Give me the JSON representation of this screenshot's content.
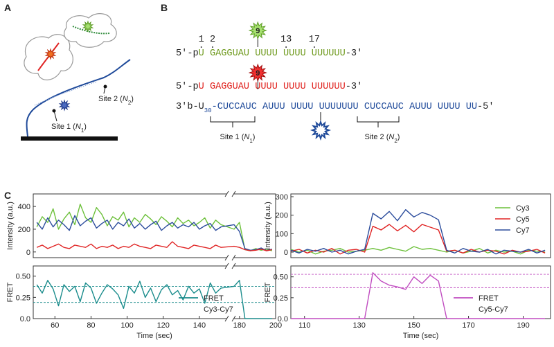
{
  "panel_labels": [
    "A",
    "B",
    "C"
  ],
  "panel_a": {
    "site2": {
      "text": "Site 2 (",
      "var": "N",
      "sub": "2",
      "close": ")"
    },
    "site1": {
      "text": "Site 1 (",
      "var": "N",
      "sub": "1",
      "close": ")"
    }
  },
  "panel_b": {
    "numbers": [
      "1",
      "2",
      "13",
      "17"
    ],
    "star_labels": [
      "9",
      "9"
    ],
    "sequences": [
      {
        "prefix": "5′-p",
        "body": "U GAGGUAU UUUU UUUU UUUUUU",
        "suffix": "-3′",
        "color": "#6f9a1e"
      },
      {
        "prefix": "5′-p",
        "body": "U GAGGUAU UUUU UUUU UUUUUU",
        "suffix": "-3′",
        "color": "#e0201c"
      },
      {
        "prefix": "3′b-U",
        "sub": "30",
        "body": "-CUCCAUC AUUU UUUU UUUUUUU CUCCAUC AUUU UUUU UU",
        "suffix": "-5′",
        "color": "#1f4a9a"
      }
    ],
    "sites": [
      {
        "text": "Site 1 (",
        "var": "N",
        "sub": "1",
        "close": ")"
      },
      {
        "text": "Site 2 (",
        "var": "N",
        "sub": "2",
        "close": ")"
      }
    ]
  },
  "chart_data": [
    {
      "type": "line",
      "y_label": "Intensity (a.u.)",
      "x": [
        50,
        53,
        56,
        59,
        62,
        65,
        68,
        71,
        74,
        77,
        80,
        83,
        86,
        89,
        92,
        95,
        98,
        101,
        104,
        107,
        110,
        113,
        116,
        119,
        122,
        125,
        128,
        131,
        134,
        137,
        140,
        143,
        146,
        149,
        152,
        177,
        180,
        183,
        186,
        189,
        192,
        195,
        198
      ],
      "xlim": [
        48,
        200
      ],
      "xbreak": [
        155,
        177
      ],
      "ylim": [
        -50,
        510
      ],
      "yticks": [
        0,
        200,
        400
      ],
      "series": [
        {
          "color": "#6cc03a",
          "values": [
            220,
            310,
            260,
            380,
            200,
            290,
            350,
            240,
            420,
            300,
            260,
            390,
            330,
            230,
            310,
            280,
            350,
            220,
            300,
            260,
            330,
            290,
            240,
            310,
            270,
            220,
            300,
            250,
            280,
            230,
            260,
            300,
            210,
            280,
            240,
            200,
            260,
            20,
            10,
            30,
            15,
            25,
            10
          ]
        },
        {
          "color": "#2b4c9c",
          "values": [
            260,
            200,
            300,
            220,
            280,
            240,
            190,
            320,
            230,
            270,
            300,
            210,
            250,
            280,
            200,
            260,
            230,
            290,
            210,
            250,
            200,
            240,
            270,
            190,
            230,
            260,
            210,
            240,
            220,
            260,
            200,
            230,
            250,
            190,
            220,
            240,
            180,
            30,
            15,
            20,
            35,
            10,
            25
          ]
        },
        {
          "color": "#e02424",
          "values": [
            40,
            60,
            30,
            50,
            70,
            40,
            30,
            60,
            50,
            40,
            70,
            30,
            50,
            40,
            60,
            30,
            50,
            40,
            70,
            50,
            40,
            30,
            60,
            50,
            40,
            90,
            50,
            40,
            30,
            60,
            50,
            40,
            30,
            60,
            40,
            50,
            40,
            20,
            10,
            15,
            25,
            10,
            20
          ]
        }
      ]
    },
    {
      "type": "line",
      "y_label": "FRET",
      "x_label": "Time (sec)",
      "x": [
        50,
        53,
        56,
        59,
        62,
        65,
        68,
        71,
        74,
        77,
        80,
        83,
        86,
        89,
        92,
        95,
        98,
        101,
        104,
        107,
        110,
        113,
        116,
        119,
        122,
        125,
        128,
        131,
        134,
        137,
        140,
        143,
        146,
        149,
        152,
        177,
        180,
        183,
        186,
        189,
        192,
        195,
        198
      ],
      "xlim": [
        48,
        200
      ],
      "xbreak": [
        155,
        177
      ],
      "xticks": [
        60,
        80,
        100,
        120,
        140,
        180,
        200
      ],
      "ylim": [
        0,
        0.62
      ],
      "yticks": [
        {
          "value": 0,
          "label": "0.0"
        },
        0.25,
        {
          "value": 0.5,
          "label": "0.50"
        }
      ],
      "reference_lines": [
        0.38,
        0.19
      ],
      "legend": "lower right",
      "series": [
        {
          "name": "FRET",
          "subname": "Cy3-Cy7",
          "color": "#1a8c8c",
          "values": [
            0.4,
            0.3,
            0.45,
            0.35,
            0.15,
            0.4,
            0.32,
            0.38,
            0.2,
            0.42,
            0.36,
            0.18,
            0.3,
            0.4,
            0.35,
            0.28,
            0.12,
            0.38,
            0.3,
            0.44,
            0.25,
            0.36,
            0.2,
            0.34,
            0.4,
            0.28,
            0.33,
            0.22,
            0.38,
            0.3,
            0.35,
            0.18,
            0.42,
            0.3,
            0.36,
            0.38,
            0.45,
            0,
            0,
            0,
            0,
            0,
            0
          ]
        }
      ]
    },
    {
      "type": "line",
      "y_label": "Intensity (a.u.)",
      "x": [
        105,
        108,
        111,
        114,
        117,
        120,
        123,
        126,
        129,
        132,
        135,
        138,
        141,
        144,
        147,
        150,
        153,
        156,
        159,
        162,
        165,
        168,
        171,
        174,
        177,
        180,
        183,
        186,
        189,
        192,
        195,
        198
      ],
      "xlim": [
        105,
        200
      ],
      "ylim": [
        -30,
        315
      ],
      "yticks": [
        0,
        100,
        200,
        300
      ],
      "legend": "upper right",
      "series": [
        {
          "name": "Cy3",
          "color": "#6cc03a",
          "values": [
            15,
            0,
            10,
            -10,
            5,
            10,
            20,
            0,
            5,
            10,
            20,
            10,
            25,
            15,
            5,
            30,
            15,
            20,
            10,
            0,
            10,
            -5,
            5,
            20,
            -5,
            10,
            0,
            5,
            -10,
            10,
            5,
            0
          ]
        },
        {
          "name": "Cy5",
          "color": "#e02424",
          "values": [
            5,
            15,
            -5,
            10,
            0,
            20,
            -10,
            10,
            15,
            0,
            140,
            120,
            150,
            115,
            145,
            110,
            150,
            135,
            120,
            5,
            10,
            -5,
            15,
            0,
            10,
            5,
            -10,
            10,
            0,
            5,
            15,
            -5
          ]
        },
        {
          "name": "Cy7",
          "color": "#2b4c9c",
          "values": [
            10,
            -5,
            15,
            5,
            20,
            0,
            10,
            -10,
            5,
            15,
            210,
            180,
            220,
            170,
            230,
            190,
            215,
            200,
            175,
            10,
            -5,
            20,
            5,
            0,
            15,
            -10,
            10,
            5,
            0,
            15,
            -5,
            10
          ]
        }
      ]
    },
    {
      "type": "line",
      "y_label": "FRET",
      "x_label": "Time (sec)",
      "x": [
        105,
        108,
        111,
        114,
        117,
        120,
        123,
        126,
        129,
        132,
        135,
        138,
        141,
        144,
        147,
        150,
        153,
        156,
        159,
        162,
        165,
        168,
        171,
        174,
        177,
        180,
        183,
        186,
        189,
        192,
        195,
        198
      ],
      "xlim": [
        105,
        200
      ],
      "xticks": [
        110,
        130,
        150,
        170,
        190
      ],
      "ylim": [
        0,
        0.63
      ],
      "yticks": [
        {
          "value": 0,
          "label": "0.0"
        },
        0.25,
        {
          "value": 0.5,
          "label": "0.50"
        }
      ],
      "reference_lines": [
        0.53,
        0.37
      ],
      "legend": "lower right",
      "series": [
        {
          "name": "FRET",
          "subname": "Cy5-Cy7",
          "color": "#c04cc0",
          "values": [
            0,
            0,
            0,
            0,
            0,
            0,
            0,
            0,
            0,
            0,
            0.55,
            0.45,
            0.4,
            0.38,
            0.35,
            0.5,
            0.42,
            0.52,
            0.45,
            0,
            0,
            0,
            0,
            0,
            0,
            0,
            0,
            0,
            0,
            0,
            0,
            0
          ]
        }
      ]
    }
  ]
}
